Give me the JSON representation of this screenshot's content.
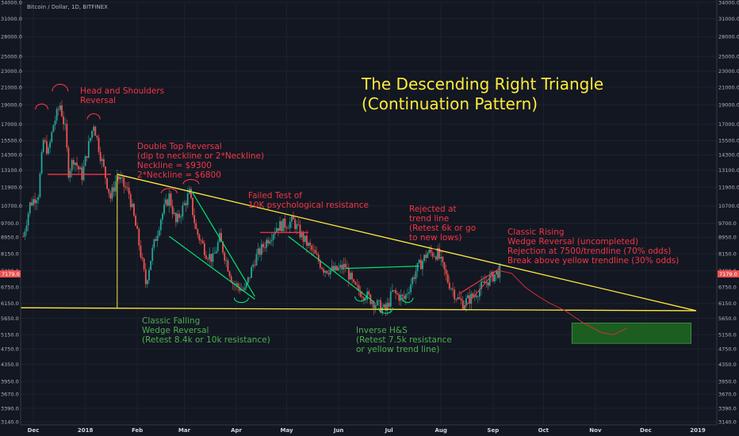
{
  "symbol_label": "Bitcoin / Dollar, 1D, BITFINEX",
  "price_badge": "7179.0",
  "chart_data": {
    "type": "candlestick",
    "title": "The Descending Right Triangle",
    "subtitle": "(Continuation Pattern)",
    "y_axis": {
      "scale": "log",
      "range": [
        3140,
        34000
      ],
      "ticks": [
        "34000.0",
        "31000.0",
        "28000.0",
        "25000.0",
        "23000.0",
        "21000.0",
        "19000.0",
        "17000.0",
        "15500.0",
        "14300.0",
        "13100.0",
        "11900.0",
        "10700.0",
        "9700.0",
        "8950.0",
        "8150.0",
        "7400.0",
        "6750.0",
        "6150.0",
        "5650.0",
        "5150.0",
        "4750.0",
        "4350.0",
        "3950.0",
        "3670.0",
        "3390.0",
        "3140.0"
      ]
    },
    "x_axis": {
      "ticks": [
        "Dec",
        "2018",
        "Feb",
        "Mar",
        "Apr",
        "May",
        "Jun",
        "Jul",
        "Aug",
        "Sep",
        "Oct",
        "Nov",
        "Dec",
        "2019"
      ]
    },
    "ohlc_close_path": [
      [
        "2017-11-25",
        9000
      ],
      [
        "2017-11-29",
        10800
      ],
      [
        "2017-12-04",
        11500
      ],
      [
        "2017-12-07",
        15500
      ],
      [
        "2017-12-10",
        14500
      ],
      [
        "2017-12-13",
        17000
      ],
      [
        "2017-12-17",
        19000
      ],
      [
        "2017-12-20",
        16500
      ],
      [
        "2017-12-22",
        13000
      ],
      [
        "2017-12-25",
        14000
      ],
      [
        "2017-12-30",
        12700
      ],
      [
        "2018-01-02",
        14500
      ],
      [
        "2018-01-06",
        17100
      ],
      [
        "2018-01-10",
        14300
      ],
      [
        "2018-01-16",
        11200
      ],
      [
        "2018-01-20",
        12700
      ],
      [
        "2018-01-27",
        11500
      ],
      [
        "2018-02-01",
        9100
      ],
      [
        "2018-02-06",
        6900
      ],
      [
        "2018-02-10",
        8300
      ],
      [
        "2018-02-15",
        10000
      ],
      [
        "2018-02-20",
        11300
      ],
      [
        "2018-02-24",
        9700
      ],
      [
        "2018-03-04",
        11500
      ],
      [
        "2018-03-08",
        9300
      ],
      [
        "2018-03-14",
        8200
      ],
      [
        "2018-03-18",
        7900
      ],
      [
        "2018-03-22",
        8900
      ],
      [
        "2018-03-30",
        6900
      ],
      [
        "2018-04-06",
        6600
      ],
      [
        "2018-04-12",
        7900
      ],
      [
        "2018-04-20",
        8900
      ],
      [
        "2018-04-25",
        9500
      ],
      [
        "2018-05-05",
        9800
      ],
      [
        "2018-05-10",
        9000
      ],
      [
        "2018-05-16",
        8300
      ],
      [
        "2018-05-23",
        7500
      ],
      [
        "2018-05-30",
        7400
      ],
      [
        "2018-06-05",
        7600
      ],
      [
        "2018-06-10",
        6750
      ],
      [
        "2018-06-17",
        6450
      ],
      [
        "2018-06-24",
        6100
      ],
      [
        "2018-06-29",
        5900
      ],
      [
        "2018-07-03",
        6550
      ],
      [
        "2018-07-10",
        6300
      ],
      [
        "2018-07-17",
        7400
      ],
      [
        "2018-07-24",
        8200
      ],
      [
        "2018-07-30",
        8150
      ],
      [
        "2018-08-05",
        7000
      ],
      [
        "2018-08-11",
        6300
      ],
      [
        "2018-08-14",
        6150
      ],
      [
        "2018-08-20",
        6400
      ],
      [
        "2018-08-27",
        6900
      ],
      [
        "2018-09-03",
        7300
      ],
      [
        "2018-09-05",
        7400
      ]
    ],
    "projection_path": [
      [
        "2018-09-05",
        7400
      ],
      [
        "2018-09-12",
        7300
      ],
      [
        "2018-09-20",
        6750
      ],
      [
        "2018-09-28",
        6400
      ],
      [
        "2018-10-05",
        6150
      ],
      [
        "2018-10-14",
        5900
      ],
      [
        "2018-10-25",
        5500
      ],
      [
        "2018-11-05",
        5200
      ],
      [
        "2018-11-12",
        5150
      ],
      [
        "2018-11-20",
        5350
      ]
    ],
    "annotations": [
      {
        "text": "Head and Shoulders\nReversal",
        "color": "#f23645"
      },
      {
        "text": "Double Top Reversal\n(dip to neckline or 2*Neckline)\nNeckline = $9300\n2*Neckline = $6800",
        "color": "#f23645"
      },
      {
        "text": "Failed Test of\n10K psychological resistance",
        "color": "#f23645"
      },
      {
        "text": "Rejected at\ntrend line\n(Retest 6k or go\nto new lows)",
        "color": "#f23645"
      },
      {
        "text": "Classic Rising\nWedge Reversal (uncompleted)\nRejection at 7500/trendline (70% odds)\nBreak above yellow trendline (30% odds)",
        "color": "#f23645"
      },
      {
        "text": "Classic Falling\nWedge Reversal\n(Retest 8.4k or 10k resistance)",
        "color": "#4caf50"
      },
      {
        "text": "Inverse H&S\n(Retest 7.5k resistance\nor yellow trend line)",
        "color": "#4caf50"
      }
    ],
    "lines": {
      "upper_trendline": [
        [
          "2018-01-20",
          12800
        ],
        [
          "2018-12-31",
          5900
        ]
      ],
      "support_line": [
        [
          "2017-11-20",
          6000
        ],
        [
          "2018-12-31",
          5900
        ]
      ],
      "neckline_red": 12800,
      "target_zone": {
        "from": "2018-10-18",
        "to": "2018-12-28",
        "low": 4900,
        "high": 5500,
        "color": "#1b5e20"
      }
    },
    "colors": {
      "up": "#26a69a",
      "down": "#ef5350",
      "trendline": "#ffeb3b",
      "green_pattern": "#00e676",
      "red_pattern": "#f23645"
    }
  }
}
